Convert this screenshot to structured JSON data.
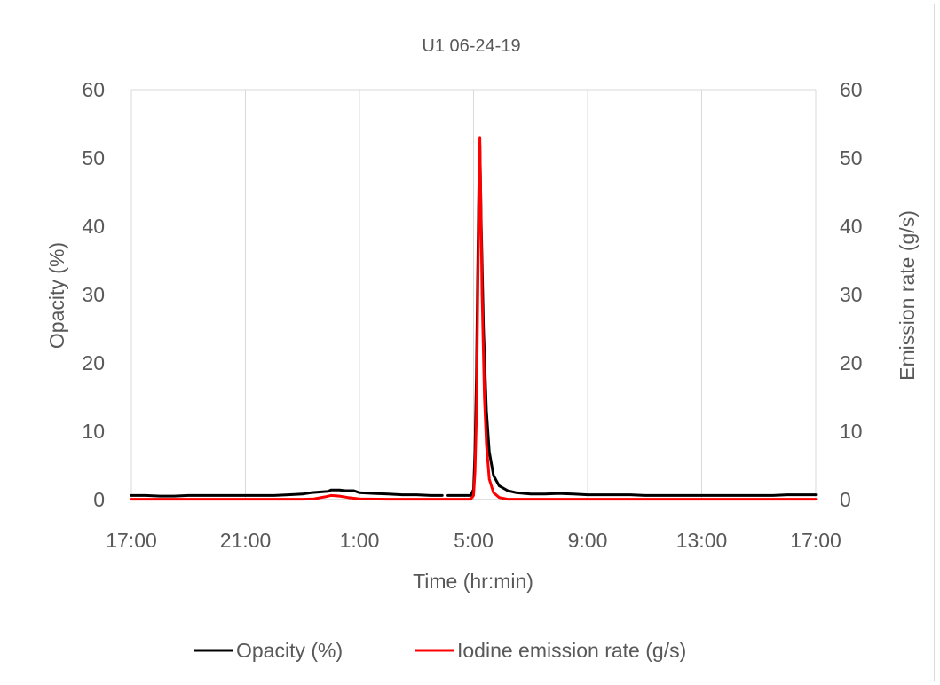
{
  "chart_data": {
    "type": "line",
    "title": "U1 06-24-19",
    "xlabel": "Time (hr:min)",
    "ylabel": "Opacity (%)",
    "y2label": "Emission rate (g/s)",
    "x_unit": "hours since 17:00",
    "x_range": [
      0,
      24
    ],
    "x_ticks": [
      {
        "at": 0,
        "label": "17:00"
      },
      {
        "at": 4,
        "label": "21:00"
      },
      {
        "at": 8,
        "label": "1:00"
      },
      {
        "at": 12,
        "label": "5:00"
      },
      {
        "at": 16,
        "label": "9:00"
      },
      {
        "at": 20,
        "label": "13:00"
      },
      {
        "at": 24,
        "label": "17:00"
      }
    ],
    "ylim": [
      0,
      60
    ],
    "y2lim": [
      0,
      60
    ],
    "y_ticks": [
      0,
      10,
      20,
      30,
      40,
      50,
      60
    ],
    "y2_ticks": [
      0,
      10,
      20,
      30,
      40,
      50,
      60
    ],
    "grid": "vertical",
    "legend_position": "bottom",
    "series": [
      {
        "name": "Opacity (%)",
        "axis": "left",
        "color": "#000000",
        "points": [
          [
            0,
            0.6
          ],
          [
            0.5,
            0.6
          ],
          [
            1,
            0.5
          ],
          [
            1.5,
            0.5
          ],
          [
            2,
            0.6
          ],
          [
            2.5,
            0.6
          ],
          [
            3,
            0.6
          ],
          [
            3.5,
            0.6
          ],
          [
            4,
            0.6
          ],
          [
            4.5,
            0.6
          ],
          [
            5,
            0.6
          ],
          [
            5.5,
            0.7
          ],
          [
            6,
            0.8
          ],
          [
            6.3,
            1.0
          ],
          [
            6.6,
            1.1
          ],
          [
            6.9,
            1.2
          ],
          [
            7.0,
            1.4
          ],
          [
            7.3,
            1.4
          ],
          [
            7.5,
            1.3
          ],
          [
            7.8,
            1.3
          ],
          [
            8,
            1.0
          ],
          [
            8.5,
            0.9
          ],
          [
            9,
            0.8
          ],
          [
            9.5,
            0.7
          ],
          [
            10,
            0.7
          ],
          [
            10.5,
            0.6
          ],
          [
            10.9,
            0.6
          ],
          null,
          [
            11.1,
            0.6
          ],
          [
            11.5,
            0.6
          ],
          [
            11.9,
            0.6
          ],
          [
            12.0,
            1.5
          ],
          [
            12.05,
            7
          ],
          [
            12.1,
            18
          ],
          [
            12.15,
            35
          ],
          [
            12.2,
            50
          ],
          [
            12.22,
            52
          ],
          [
            12.27,
            40
          ],
          [
            12.35,
            25
          ],
          [
            12.45,
            13
          ],
          [
            12.55,
            7
          ],
          [
            12.7,
            3.5
          ],
          [
            12.9,
            2.0
          ],
          [
            13.2,
            1.3
          ],
          [
            13.5,
            1.0
          ],
          [
            14,
            0.8
          ],
          [
            14.5,
            0.8
          ],
          [
            15,
            0.9
          ],
          [
            15.5,
            0.8
          ],
          [
            16,
            0.7
          ],
          [
            16.5,
            0.7
          ],
          [
            17,
            0.7
          ],
          [
            17.5,
            0.7
          ],
          [
            18,
            0.6
          ],
          [
            18.5,
            0.6
          ],
          [
            19,
            0.6
          ],
          [
            19.5,
            0.6
          ],
          [
            20,
            0.6
          ],
          [
            20.5,
            0.6
          ],
          [
            21,
            0.6
          ],
          [
            21.5,
            0.6
          ],
          [
            22,
            0.6
          ],
          [
            22.5,
            0.6
          ],
          [
            23,
            0.7
          ],
          [
            23.5,
            0.7
          ],
          [
            24,
            0.7
          ]
        ]
      },
      {
        "name": "Iodine emission rate (g/s)",
        "axis": "right",
        "color": "#ff0000",
        "points": [
          [
            0,
            0.05
          ],
          [
            1,
            0.05
          ],
          [
            2,
            0.05
          ],
          [
            3,
            0.05
          ],
          [
            4,
            0.05
          ],
          [
            5,
            0.05
          ],
          [
            6,
            0.05
          ],
          [
            6.4,
            0.1
          ],
          [
            6.8,
            0.4
          ],
          [
            7.0,
            0.6
          ],
          [
            7.3,
            0.5
          ],
          [
            7.6,
            0.3
          ],
          [
            8,
            0.1
          ],
          [
            9,
            0.05
          ],
          [
            10,
            0.05
          ],
          [
            11,
            0.05
          ],
          [
            11.9,
            0.05
          ],
          [
            12.0,
            0.6
          ],
          [
            12.05,
            4
          ],
          [
            12.1,
            12
          ],
          [
            12.15,
            30
          ],
          [
            12.2,
            48
          ],
          [
            12.22,
            53
          ],
          [
            12.25,
            45
          ],
          [
            12.3,
            30
          ],
          [
            12.38,
            15
          ],
          [
            12.45,
            8
          ],
          [
            12.55,
            3
          ],
          [
            12.7,
            1
          ],
          [
            12.9,
            0.3
          ],
          [
            13.2,
            0.05
          ],
          [
            14,
            0.05
          ],
          [
            16,
            0.05
          ],
          [
            18,
            0.05
          ],
          [
            20,
            0.05
          ],
          [
            22,
            0.05
          ],
          [
            24,
            0.05
          ]
        ]
      }
    ]
  }
}
